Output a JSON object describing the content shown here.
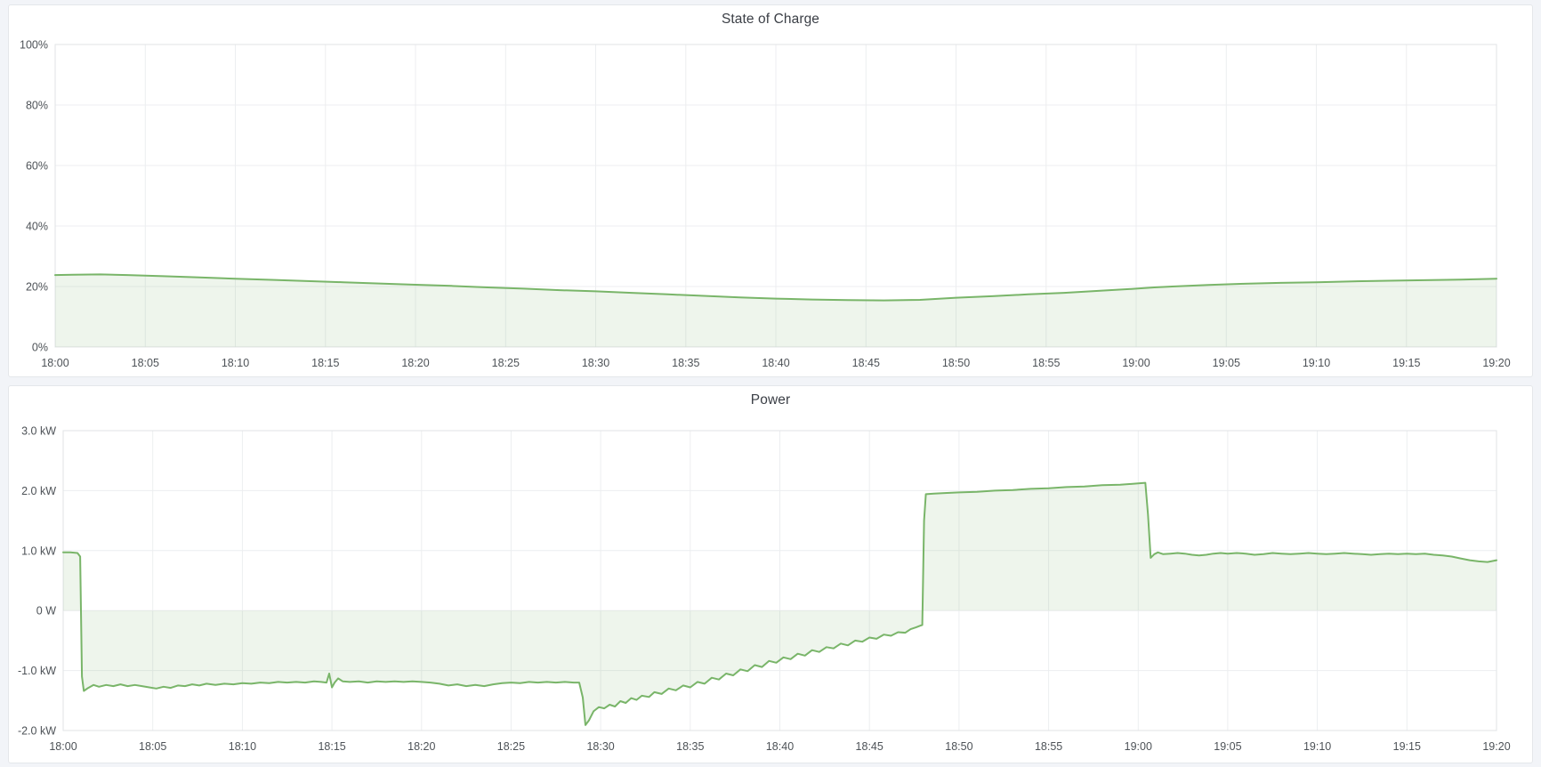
{
  "colors": {
    "page_bg": "#f2f4f8",
    "panel_bg": "#ffffff",
    "panel_border": "#e4e7ea",
    "grid": "#eceef0",
    "plot_border": "#e0e3e6",
    "axis_text": "#4d5257",
    "title_text": "#3b3f46",
    "series_line": "#79b569",
    "series_fill": "rgba(121,181,105,0.13)"
  },
  "chart_data": [
    {
      "type": "area",
      "title": "State of Charge",
      "xlabel": "",
      "ylabel": "",
      "unit": "%",
      "legend": "none",
      "grid": "on",
      "xlim_minutes": [
        0,
        80
      ],
      "ylim": [
        0,
        100
      ],
      "x_ticks": [
        {
          "t": 0,
          "label": "18:00"
        },
        {
          "t": 5,
          "label": "18:05"
        },
        {
          "t": 10,
          "label": "18:10"
        },
        {
          "t": 15,
          "label": "18:15"
        },
        {
          "t": 20,
          "label": "18:20"
        },
        {
          "t": 25,
          "label": "18:25"
        },
        {
          "t": 30,
          "label": "18:30"
        },
        {
          "t": 35,
          "label": "18:35"
        },
        {
          "t": 40,
          "label": "18:40"
        },
        {
          "t": 45,
          "label": "18:45"
        },
        {
          "t": 50,
          "label": "18:50"
        },
        {
          "t": 55,
          "label": "18:55"
        },
        {
          "t": 60,
          "label": "19:00"
        },
        {
          "t": 65,
          "label": "19:05"
        },
        {
          "t": 70,
          "label": "19:10"
        },
        {
          "t": 75,
          "label": "19:15"
        },
        {
          "t": 80,
          "label": "19:20"
        }
      ],
      "y_ticks": [
        {
          "v": 0,
          "label": "0%"
        },
        {
          "v": 20,
          "label": "20%"
        },
        {
          "v": 40,
          "label": "40%"
        },
        {
          "v": 60,
          "label": "60%"
        },
        {
          "v": 80,
          "label": "80%"
        },
        {
          "v": 100,
          "label": "100%"
        }
      ],
      "series": [
        {
          "name": "State of Charge",
          "points": [
            [
              0,
              23.8
            ],
            [
              1,
              23.9
            ],
            [
              2.5,
              24.0
            ],
            [
              4,
              23.8
            ],
            [
              6,
              23.4
            ],
            [
              8,
              23.0
            ],
            [
              10,
              22.6
            ],
            [
              12,
              22.2
            ],
            [
              14,
              21.8
            ],
            [
              16,
              21.4
            ],
            [
              18,
              21.0
            ],
            [
              20,
              20.6
            ],
            [
              22,
              20.2
            ],
            [
              24,
              19.7
            ],
            [
              26,
              19.3
            ],
            [
              28,
              18.8
            ],
            [
              30,
              18.4
            ],
            [
              32,
              17.9
            ],
            [
              34,
              17.4
            ],
            [
              36,
              16.9
            ],
            [
              38,
              16.4
            ],
            [
              40,
              16.0
            ],
            [
              42,
              15.7
            ],
            [
              44,
              15.5
            ],
            [
              46,
              15.4
            ],
            [
              48,
              15.6
            ],
            [
              50,
              16.3
            ],
            [
              52,
              16.8
            ],
            [
              54,
              17.4
            ],
            [
              56,
              17.9
            ],
            [
              58,
              18.6
            ],
            [
              60,
              19.3
            ],
            [
              61,
              19.7
            ],
            [
              62,
              20.0
            ],
            [
              64,
              20.5
            ],
            [
              66,
              20.9
            ],
            [
              68,
              21.2
            ],
            [
              70,
              21.4
            ],
            [
              72,
              21.7
            ],
            [
              74,
              21.9
            ],
            [
              76,
              22.1
            ],
            [
              78,
              22.3
            ],
            [
              80,
              22.6
            ]
          ]
        }
      ]
    },
    {
      "type": "area",
      "title": "Power",
      "xlabel": "",
      "ylabel": "",
      "unit": "kW",
      "legend": "none",
      "grid": "on",
      "xlim_minutes": [
        0,
        80
      ],
      "ylim": [
        -2,
        3
      ],
      "x_ticks": [
        {
          "t": 0,
          "label": "18:00"
        },
        {
          "t": 5,
          "label": "18:05"
        },
        {
          "t": 10,
          "label": "18:10"
        },
        {
          "t": 15,
          "label": "18:15"
        },
        {
          "t": 20,
          "label": "18:20"
        },
        {
          "t": 25,
          "label": "18:25"
        },
        {
          "t": 30,
          "label": "18:30"
        },
        {
          "t": 35,
          "label": "18:35"
        },
        {
          "t": 40,
          "label": "18:40"
        },
        {
          "t": 45,
          "label": "18:45"
        },
        {
          "t": 50,
          "label": "18:50"
        },
        {
          "t": 55,
          "label": "18:55"
        },
        {
          "t": 60,
          "label": "19:00"
        },
        {
          "t": 65,
          "label": "19:05"
        },
        {
          "t": 70,
          "label": "19:10"
        },
        {
          "t": 75,
          "label": "19:15"
        },
        {
          "t": 80,
          "label": "19:20"
        }
      ],
      "y_ticks": [
        {
          "v": 3,
          "label": "3.0 kW"
        },
        {
          "v": 2,
          "label": "2.0 kW"
        },
        {
          "v": 1,
          "label": "1.0 kW"
        },
        {
          "v": 0,
          "label": "0 W"
        },
        {
          "v": -1,
          "label": "-1.0 kW"
        },
        {
          "v": -2,
          "label": "-2.0 kW"
        }
      ],
      "series": [
        {
          "name": "Power",
          "points": [
            [
              0,
              0.97
            ],
            [
              0.4,
              0.97
            ],
            [
              0.8,
              0.96
            ],
            [
              0.95,
              0.9
            ],
            [
              1.05,
              -1.1
            ],
            [
              1.15,
              -1.34
            ],
            [
              1.4,
              -1.29
            ],
            [
              1.7,
              -1.24
            ],
            [
              2,
              -1.27
            ],
            [
              2.4,
              -1.24
            ],
            [
              2.8,
              -1.26
            ],
            [
              3.2,
              -1.23
            ],
            [
              3.6,
              -1.26
            ],
            [
              4,
              -1.24
            ],
            [
              4.4,
              -1.26
            ],
            [
              4.8,
              -1.28
            ],
            [
              5.2,
              -1.3
            ],
            [
              5.6,
              -1.27
            ],
            [
              6,
              -1.29
            ],
            [
              6.4,
              -1.25
            ],
            [
              6.8,
              -1.26
            ],
            [
              7.2,
              -1.23
            ],
            [
              7.6,
              -1.25
            ],
            [
              8,
              -1.22
            ],
            [
              8.5,
              -1.24
            ],
            [
              9,
              -1.22
            ],
            [
              9.5,
              -1.23
            ],
            [
              10,
              -1.21
            ],
            [
              10.5,
              -1.22
            ],
            [
              11,
              -1.2
            ],
            [
              11.5,
              -1.21
            ],
            [
              12,
              -1.19
            ],
            [
              12.5,
              -1.2
            ],
            [
              13,
              -1.19
            ],
            [
              13.5,
              -1.2
            ],
            [
              14,
              -1.18
            ],
            [
              14.4,
              -1.19
            ],
            [
              14.7,
              -1.2
            ],
            [
              14.85,
              -1.05
            ],
            [
              15,
              -1.28
            ],
            [
              15.15,
              -1.2
            ],
            [
              15.35,
              -1.13
            ],
            [
              15.6,
              -1.18
            ],
            [
              16,
              -1.19
            ],
            [
              16.5,
              -1.18
            ],
            [
              17,
              -1.2
            ],
            [
              17.5,
              -1.18
            ],
            [
              18,
              -1.19
            ],
            [
              18.5,
              -1.18
            ],
            [
              19,
              -1.19
            ],
            [
              19.5,
              -1.18
            ],
            [
              20,
              -1.19
            ],
            [
              20.5,
              -1.2
            ],
            [
              21,
              -1.22
            ],
            [
              21.5,
              -1.25
            ],
            [
              22,
              -1.23
            ],
            [
              22.5,
              -1.26
            ],
            [
              23,
              -1.24
            ],
            [
              23.5,
              -1.26
            ],
            [
              24,
              -1.23
            ],
            [
              24.5,
              -1.21
            ],
            [
              25,
              -1.2
            ],
            [
              25.5,
              -1.21
            ],
            [
              26,
              -1.19
            ],
            [
              26.5,
              -1.2
            ],
            [
              27,
              -1.19
            ],
            [
              27.5,
              -1.2
            ],
            [
              28,
              -1.19
            ],
            [
              28.5,
              -1.2
            ],
            [
              28.8,
              -1.2
            ],
            [
              29,
              -1.45
            ],
            [
              29.15,
              -1.91
            ],
            [
              29.35,
              -1.83
            ],
            [
              29.6,
              -1.68
            ],
            [
              29.9,
              -1.61
            ],
            [
              30.2,
              -1.63
            ],
            [
              30.5,
              -1.57
            ],
            [
              30.8,
              -1.6
            ],
            [
              31.1,
              -1.51
            ],
            [
              31.4,
              -1.54
            ],
            [
              31.7,
              -1.46
            ],
            [
              32,
              -1.49
            ],
            [
              32.3,
              -1.42
            ],
            [
              32.7,
              -1.44
            ],
            [
              33,
              -1.36
            ],
            [
              33.4,
              -1.39
            ],
            [
              33.8,
              -1.3
            ],
            [
              34.2,
              -1.33
            ],
            [
              34.6,
              -1.25
            ],
            [
              35,
              -1.28
            ],
            [
              35.4,
              -1.19
            ],
            [
              35.8,
              -1.22
            ],
            [
              36.2,
              -1.12
            ],
            [
              36.6,
              -1.15
            ],
            [
              37,
              -1.05
            ],
            [
              37.4,
              -1.08
            ],
            [
              37.8,
              -0.98
            ],
            [
              38.2,
              -1.01
            ],
            [
              38.6,
              -0.91
            ],
            [
              39,
              -0.94
            ],
            [
              39.4,
              -0.84
            ],
            [
              39.8,
              -0.87
            ],
            [
              40.2,
              -0.78
            ],
            [
              40.6,
              -0.81
            ],
            [
              41,
              -0.72
            ],
            [
              41.4,
              -0.75
            ],
            [
              41.8,
              -0.66
            ],
            [
              42.2,
              -0.69
            ],
            [
              42.6,
              -0.61
            ],
            [
              43,
              -0.63
            ],
            [
              43.4,
              -0.55
            ],
            [
              43.8,
              -0.58
            ],
            [
              44.2,
              -0.5
            ],
            [
              44.6,
              -0.52
            ],
            [
              45,
              -0.45
            ],
            [
              45.4,
              -0.47
            ],
            [
              45.8,
              -0.4
            ],
            [
              46.2,
              -0.42
            ],
            [
              46.6,
              -0.36
            ],
            [
              47,
              -0.37
            ],
            [
              47.3,
              -0.31
            ],
            [
              47.6,
              -0.28
            ],
            [
              47.85,
              -0.25
            ],
            [
              47.95,
              -0.24
            ],
            [
              48.05,
              1.5
            ],
            [
              48.15,
              1.94
            ],
            [
              48.6,
              1.95
            ],
            [
              49.2,
              1.96
            ],
            [
              50,
              1.97
            ],
            [
              51,
              1.98
            ],
            [
              52,
              2.0
            ],
            [
              53,
              2.01
            ],
            [
              54,
              2.03
            ],
            [
              55,
              2.04
            ],
            [
              56,
              2.06
            ],
            [
              57,
              2.07
            ],
            [
              58,
              2.09
            ],
            [
              59,
              2.1
            ],
            [
              60,
              2.12
            ],
            [
              60.4,
              2.13
            ],
            [
              60.55,
              1.6
            ],
            [
              60.7,
              0.88
            ],
            [
              60.9,
              0.94
            ],
            [
              61.1,
              0.97
            ],
            [
              61.4,
              0.94
            ],
            [
              61.8,
              0.95
            ],
            [
              62.2,
              0.96
            ],
            [
              62.6,
              0.95
            ],
            [
              63,
              0.93
            ],
            [
              63.4,
              0.92
            ],
            [
              63.8,
              0.93
            ],
            [
              64.2,
              0.95
            ],
            [
              64.6,
              0.96
            ],
            [
              65,
              0.95
            ],
            [
              65.5,
              0.96
            ],
            [
              66,
              0.95
            ],
            [
              66.5,
              0.93
            ],
            [
              67,
              0.94
            ],
            [
              67.5,
              0.96
            ],
            [
              68,
              0.95
            ],
            [
              68.5,
              0.94
            ],
            [
              69,
              0.95
            ],
            [
              69.5,
              0.96
            ],
            [
              70,
              0.95
            ],
            [
              70.5,
              0.94
            ],
            [
              71,
              0.95
            ],
            [
              71.5,
              0.96
            ],
            [
              72,
              0.95
            ],
            [
              72.5,
              0.94
            ],
            [
              73,
              0.93
            ],
            [
              73.5,
              0.94
            ],
            [
              74,
              0.95
            ],
            [
              74.5,
              0.94
            ],
            [
              75,
              0.95
            ],
            [
              75.5,
              0.94
            ],
            [
              76,
              0.95
            ],
            [
              76.5,
              0.93
            ],
            [
              77,
              0.92
            ],
            [
              77.5,
              0.9
            ],
            [
              78,
              0.87
            ],
            [
              78.5,
              0.84
            ],
            [
              79,
              0.82
            ],
            [
              79.5,
              0.81
            ],
            [
              80,
              0.84
            ]
          ]
        }
      ]
    }
  ]
}
